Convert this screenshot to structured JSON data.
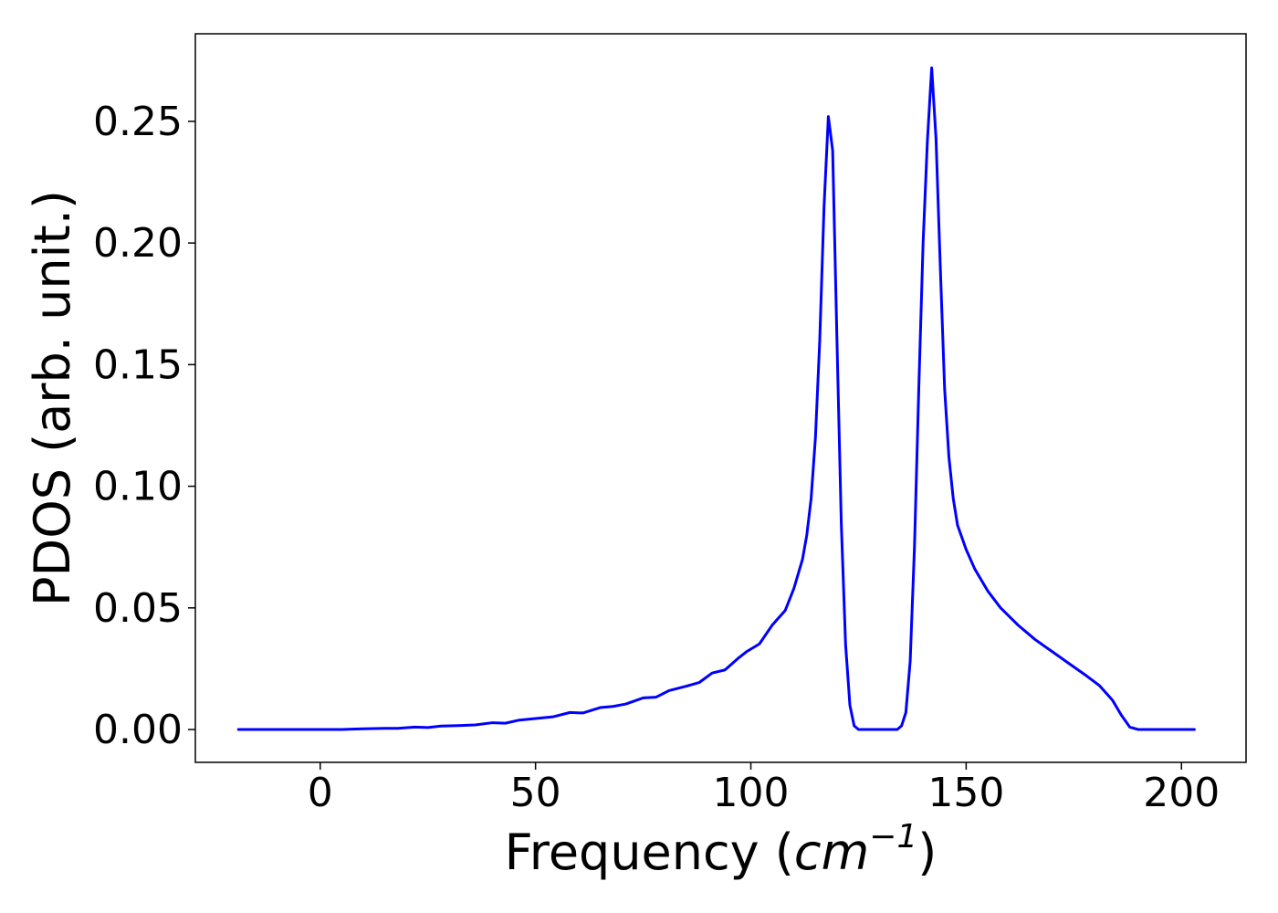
{
  "chart_data": {
    "type": "line",
    "title": "",
    "xlabel": {
      "prefix": "Frequency (",
      "unit_base": "cm",
      "unit_exponent": "−1",
      "suffix": ")"
    },
    "ylabel": "PDOS (arb. unit.)",
    "xlim": [
      -29,
      215
    ],
    "ylim": [
      -0.0135,
      0.286
    ],
    "x_ticks": [
      {
        "value": 0,
        "label": "0"
      },
      {
        "value": 50,
        "label": "50"
      },
      {
        "value": 100,
        "label": "100"
      },
      {
        "value": 150,
        "label": "150"
      },
      {
        "value": 200,
        "label": "200"
      }
    ],
    "y_ticks": [
      {
        "value": 0.0,
        "label": "0.00"
      },
      {
        "value": 0.05,
        "label": "0.05"
      },
      {
        "value": 0.1,
        "label": "0.10"
      },
      {
        "value": 0.15,
        "label": "0.15"
      },
      {
        "value": 0.2,
        "label": "0.20"
      },
      {
        "value": 0.25,
        "label": "0.25"
      }
    ],
    "grid": false,
    "legend": null,
    "series": [
      {
        "color": "#0000ff",
        "points": [
          [
            -19,
            0.0
          ],
          [
            0,
            0.0
          ],
          [
            5,
            0.0
          ],
          [
            10,
            0.0003
          ],
          [
            15,
            0.0005
          ],
          [
            18,
            0.0005
          ],
          [
            22,
            0.001
          ],
          [
            25,
            0.0008
          ],
          [
            28,
            0.0014
          ],
          [
            32,
            0.0016
          ],
          [
            36,
            0.0019
          ],
          [
            40,
            0.0028
          ],
          [
            43,
            0.0026
          ],
          [
            46,
            0.0038
          ],
          [
            50,
            0.0045
          ],
          [
            54,
            0.0052
          ],
          [
            58,
            0.007
          ],
          [
            61,
            0.0068
          ],
          [
            65,
            0.009
          ],
          [
            68,
            0.0095
          ],
          [
            71,
            0.0105
          ],
          [
            75,
            0.013
          ],
          [
            78,
            0.0133
          ],
          [
            81,
            0.016
          ],
          [
            85,
            0.0178
          ],
          [
            88,
            0.0193
          ],
          [
            91,
            0.0232
          ],
          [
            94,
            0.0245
          ],
          [
            97,
            0.0292
          ],
          [
            99,
            0.032
          ],
          [
            102,
            0.0352
          ],
          [
            105,
            0.043
          ],
          [
            108,
            0.049
          ],
          [
            110,
            0.058
          ],
          [
            112,
            0.07
          ],
          [
            113,
            0.08
          ],
          [
            114,
            0.095
          ],
          [
            115,
            0.12
          ],
          [
            116,
            0.16
          ],
          [
            117,
            0.215
          ],
          [
            118,
            0.252
          ],
          [
            119,
            0.238
          ],
          [
            120,
            0.16
          ],
          [
            121,
            0.085
          ],
          [
            122,
            0.035
          ],
          [
            123,
            0.01
          ],
          [
            124,
            0.0015
          ],
          [
            125,
            0.0
          ],
          [
            130,
            0.0
          ],
          [
            134,
            0.0
          ],
          [
            135,
            0.0015
          ],
          [
            136,
            0.007
          ],
          [
            137,
            0.028
          ],
          [
            138,
            0.075
          ],
          [
            139,
            0.14
          ],
          [
            140,
            0.2
          ],
          [
            141,
            0.242
          ],
          [
            142,
            0.272
          ],
          [
            143,
            0.243
          ],
          [
            144,
            0.19
          ],
          [
            145,
            0.14
          ],
          [
            146,
            0.112
          ],
          [
            147,
            0.095
          ],
          [
            148,
            0.084
          ],
          [
            150,
            0.074
          ],
          [
            152,
            0.066
          ],
          [
            155,
            0.057
          ],
          [
            158,
            0.05
          ],
          [
            162,
            0.043
          ],
          [
            166,
            0.037
          ],
          [
            170,
            0.032
          ],
          [
            174,
            0.027
          ],
          [
            178,
            0.022
          ],
          [
            181,
            0.018
          ],
          [
            184,
            0.012
          ],
          [
            186,
            0.006
          ],
          [
            188,
            0.001
          ],
          [
            190,
            0.0
          ],
          [
            195,
            0.0
          ],
          [
            203,
            0.0
          ]
        ]
      }
    ]
  }
}
